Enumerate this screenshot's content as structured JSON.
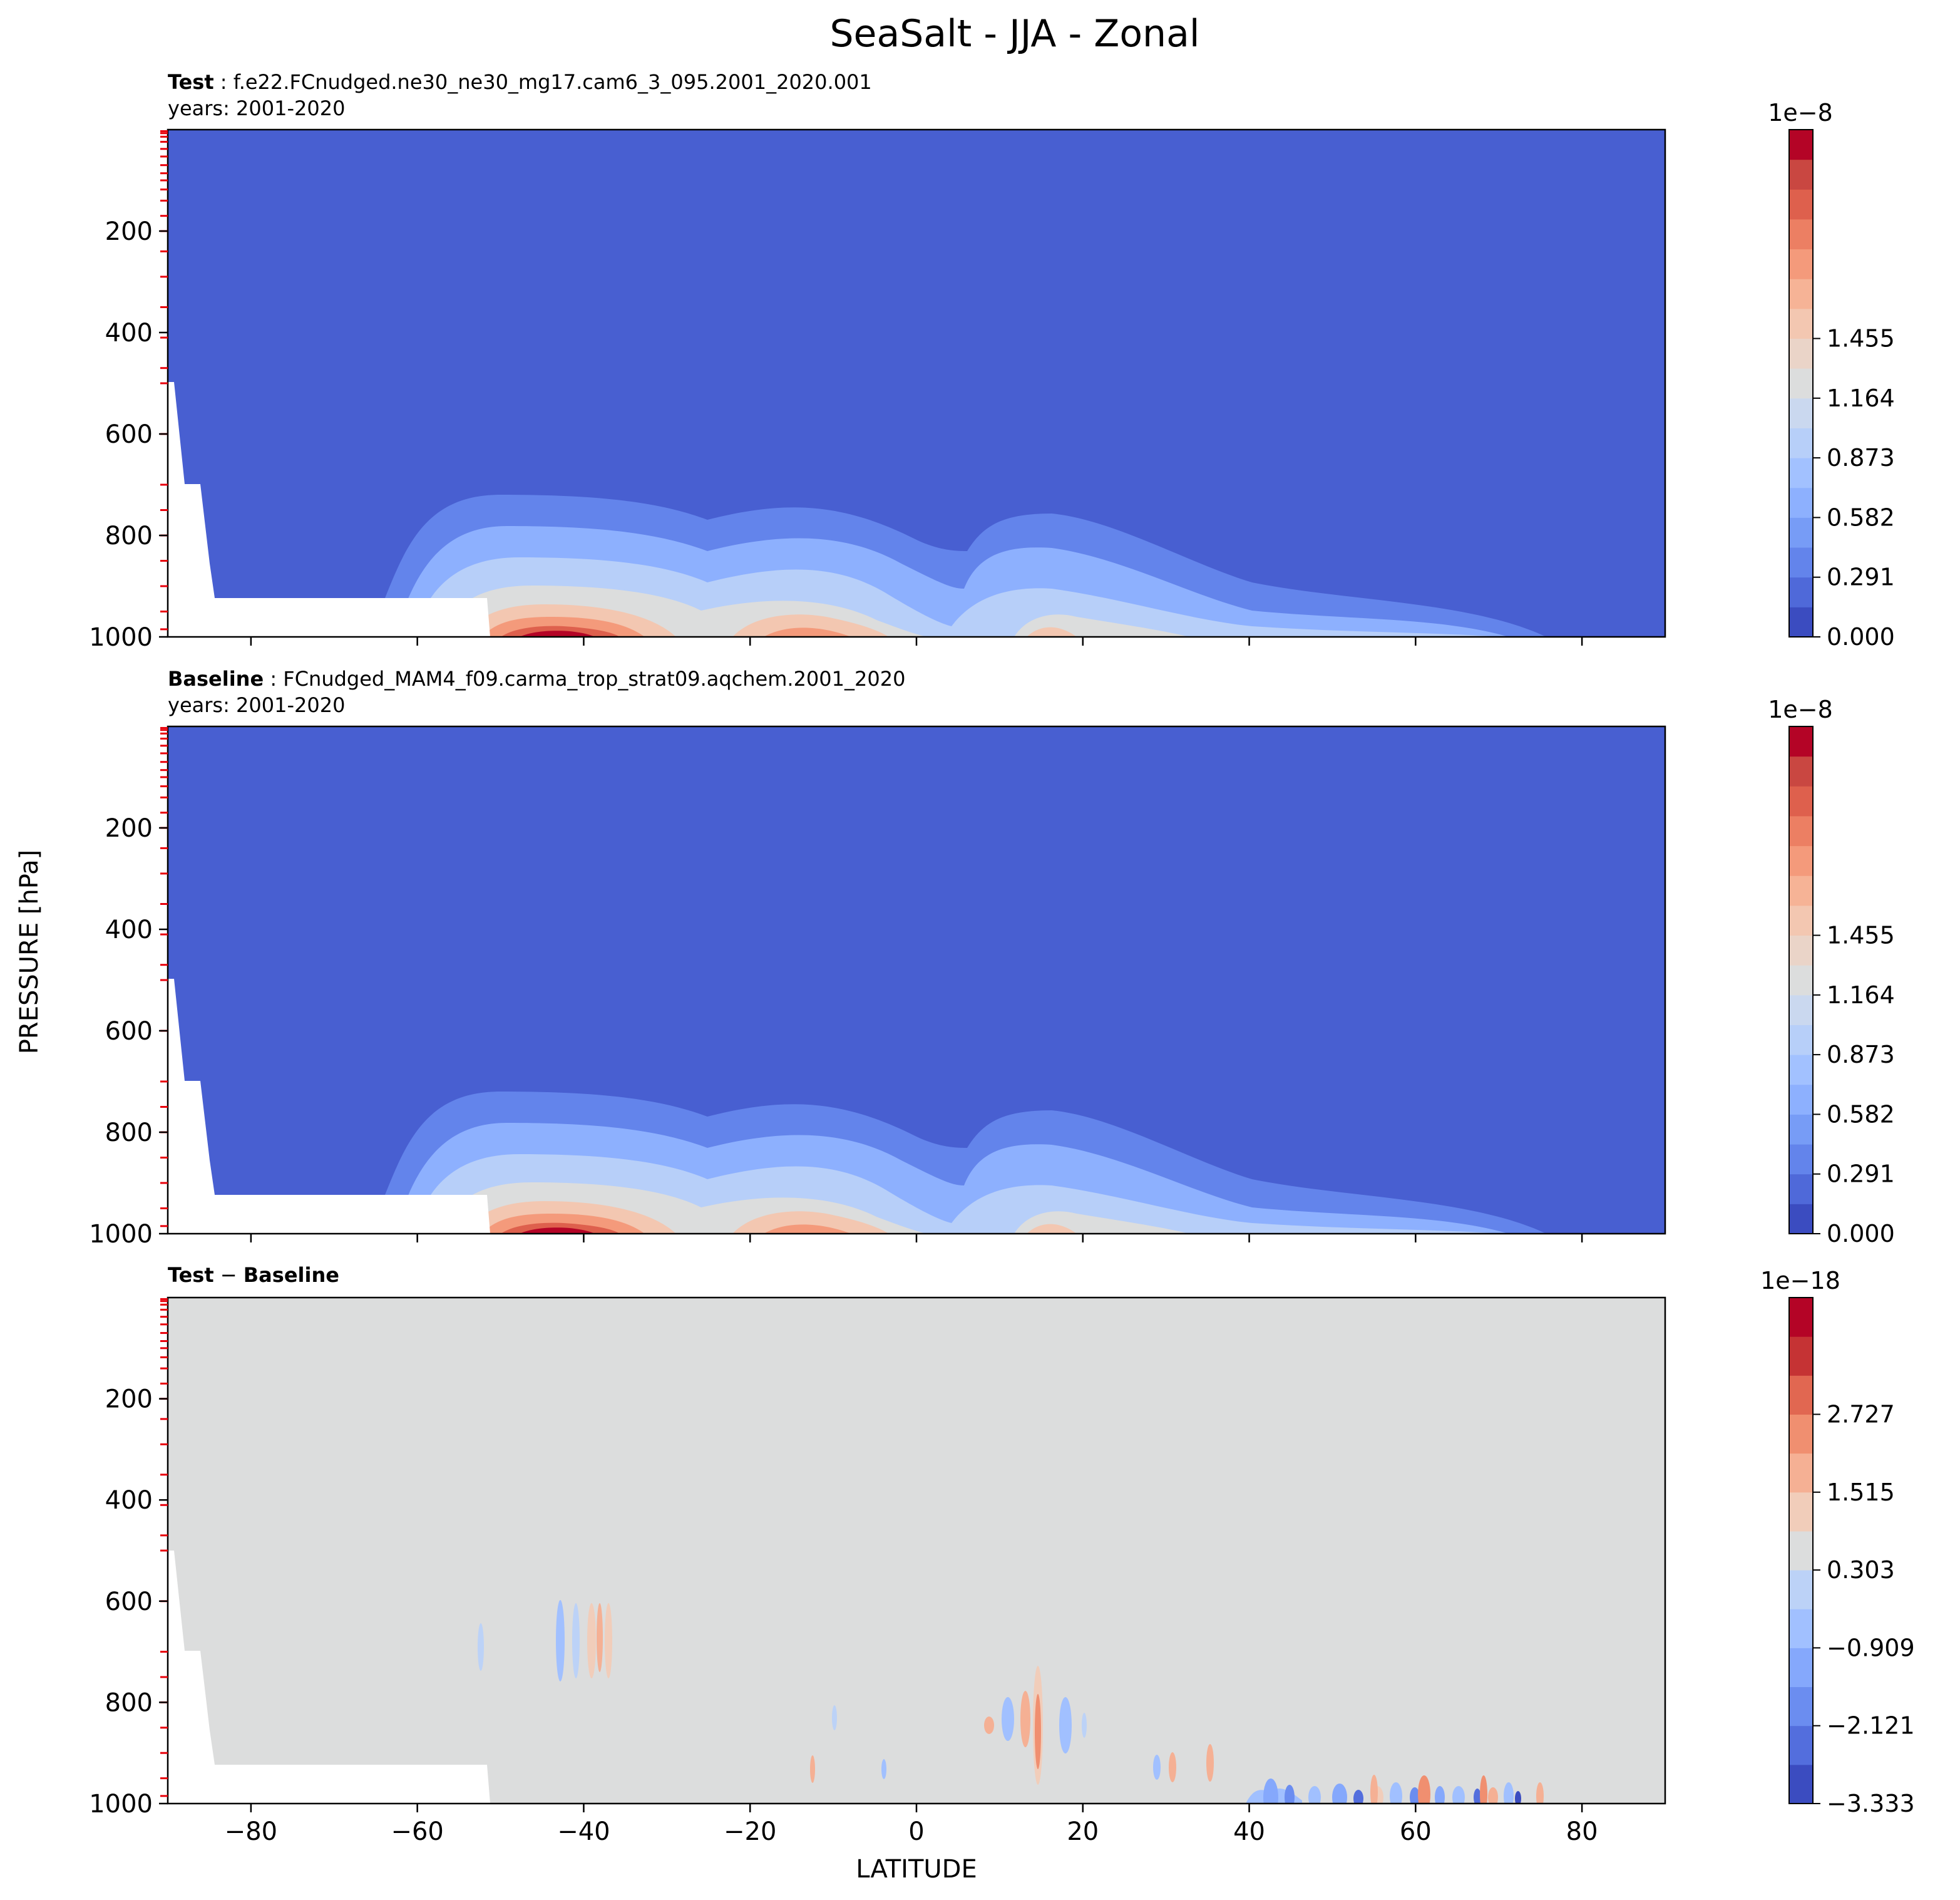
{
  "figure": {
    "suptitle": "SeaSalt - JJA - Zonal",
    "ylabel": "PRESSURE [hPa]",
    "xlabel": "LATITUDE"
  },
  "colors": {
    "deep_blue": "#485fd1",
    "neutral_gray": "#dcdddd",
    "red_marks": "#e8000b"
  },
  "panels": [
    {
      "title_bold": "Test",
      "title_rest": " : f.e22.FCnudged.ne30_ne30_mg17.cam6_3_095.2001_2020.001",
      "years": "years: 2001-2020",
      "colorbar": {
        "exponent": "1e−8",
        "ticks": [
          "0.000",
          "0.291",
          "0.582",
          "0.873",
          "1.164",
          "1.455"
        ],
        "colors": [
          "#3b4cc0",
          "#4f69d9",
          "#6384eb",
          "#779cf6",
          "#8db0fe",
          "#a2c1ff",
          "#b7cff9",
          "#cad8ef",
          "#dcdddd",
          "#ead4c8",
          "#f3c7b1",
          "#f6b396",
          "#f49a7b",
          "#ec7f63",
          "#de604d",
          "#c94741",
          "#b40426"
        ]
      }
    },
    {
      "title_bold": "Baseline",
      "title_rest": " : FCnudged_MAM4_f09.carma_trop_strat09.aqchem.2001_2020",
      "years": "years: 2001-2020",
      "colorbar": {
        "exponent": "1e−8",
        "ticks": [
          "0.000",
          "0.291",
          "0.582",
          "0.873",
          "1.164",
          "1.455"
        ],
        "colors": [
          "#3b4cc0",
          "#4f69d9",
          "#6384eb",
          "#779cf6",
          "#8db0fe",
          "#a2c1ff",
          "#b7cff9",
          "#cad8ef",
          "#dcdddd",
          "#ead4c8",
          "#f3c7b1",
          "#f6b396",
          "#f49a7b",
          "#ec7f63",
          "#de604d",
          "#c94741",
          "#b40426"
        ]
      }
    },
    {
      "title_bold": "Test",
      "title_rest": " − ",
      "title_bold2": "Baseline",
      "years": "",
      "colorbar": {
        "exponent": "1e−18",
        "ticks": [
          "−3.333",
          "−2.121",
          "−0.909",
          "0.303",
          "1.515",
          "2.727"
        ],
        "colors": [
          "#3b4cc0",
          "#536edd",
          "#6b8df0",
          "#85a8fc",
          "#a1c0ff",
          "#bcd2f7",
          "#dcdddd",
          "#f1cdba",
          "#f5b094",
          "#f08f70",
          "#e16751",
          "#c53334",
          "#b40426"
        ]
      }
    }
  ],
  "chart_data": [
    {
      "type": "contour",
      "panel": "Test",
      "x_label": "LATITUDE",
      "y_label": "PRESSURE [hPa]",
      "xlim": [
        -90,
        90
      ],
      "ylim": [
        1000,
        0
      ],
      "x_ticks": [
        -80,
        -60,
        -40,
        -20,
        0,
        20,
        40,
        60,
        80
      ],
      "y_ticks": [
        200,
        400,
        600,
        800,
        1000
      ],
      "color_range": [
        0.0,
        1.6e-08
      ],
      "near_surface_maxima": [
        {
          "lat": -45,
          "pressure": 1000,
          "value": 1.6e-08
        },
        {
          "lat": -15,
          "pressure": 1000,
          "value": 1.1e-08
        },
        {
          "lat": 14,
          "pressure": 1000,
          "value": 9e-09
        }
      ]
    },
    {
      "type": "contour",
      "panel": "Baseline",
      "x_label": "LATITUDE",
      "y_label": "PRESSURE [hPa]",
      "xlim": [
        -90,
        90
      ],
      "ylim": [
        1000,
        0
      ],
      "x_ticks": [
        -80,
        -60,
        -40,
        -20,
        0,
        20,
        40,
        60,
        80
      ],
      "y_ticks": [
        200,
        400,
        600,
        800,
        1000
      ],
      "color_range": [
        0.0,
        1.6e-08
      ],
      "near_surface_maxima": [
        {
          "lat": -45,
          "pressure": 1000,
          "value": 1.6e-08
        },
        {
          "lat": -15,
          "pressure": 1000,
          "value": 1.1e-08
        },
        {
          "lat": 14,
          "pressure": 1000,
          "value": 9e-09
        }
      ]
    },
    {
      "type": "contour",
      "panel": "Test - Baseline",
      "x_label": "LATITUDE",
      "y_label": "PRESSURE [hPa]",
      "xlim": [
        -90,
        90
      ],
      "ylim": [
        1000,
        0
      ],
      "x_ticks": [
        -80,
        -60,
        -40,
        -20,
        0,
        20,
        40,
        60,
        80
      ],
      "y_ticks": [
        200,
        400,
        600,
        800,
        1000
      ],
      "color_range": [
        -3.333e-18,
        3.333e-18
      ]
    }
  ]
}
